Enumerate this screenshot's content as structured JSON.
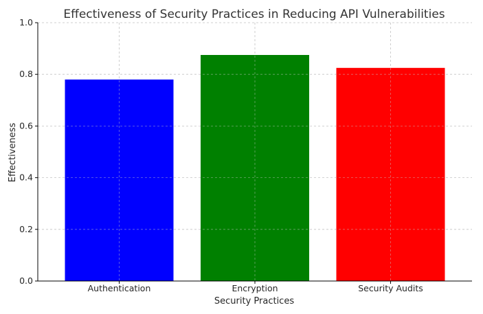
{
  "chart_data": {
    "type": "bar",
    "title": "Effectiveness of Security Practices in Reducing API Vulnerabilities",
    "xlabel": "Security Practices",
    "ylabel": "Effectiveness",
    "categories": [
      "Authentication",
      "Encryption",
      "Security Audits"
    ],
    "values": [
      0.78,
      0.875,
      0.825
    ],
    "colors": [
      "#0000ff",
      "#008000",
      "#ff0000"
    ],
    "ylim": [
      0,
      1.0
    ],
    "yticks": [
      "0.0",
      "0.2",
      "0.4",
      "0.6",
      "0.8",
      "1.0"
    ],
    "grid": true,
    "legend": "none"
  }
}
